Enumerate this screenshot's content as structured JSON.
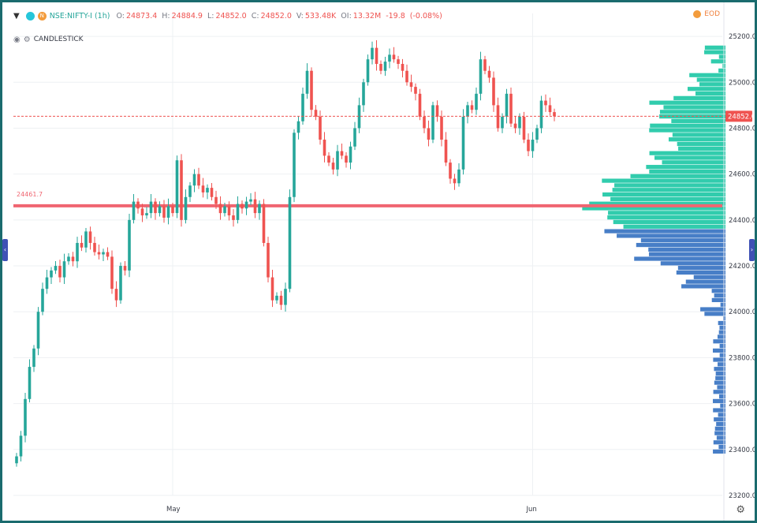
{
  "header": {
    "symbol": "NSE:NIFTY-I (1h)",
    "open_label": "O:",
    "open": "24873.4",
    "high_label": "H:",
    "high": "24884.9",
    "low_label": "L:",
    "low": "24852.0",
    "close_label": "C:",
    "close": "24852.0",
    "volume_label": "V:",
    "volume": "533.48K",
    "oi_label": "OI:",
    "oi": "13.32M",
    "change": "-19.8",
    "change_pct": "(-0.08%)"
  },
  "subheader": {
    "chart_type": "CANDLESTICK"
  },
  "eod_label": "EOD",
  "colors": {
    "up": "#26a69a",
    "down": "#ef5350",
    "profile_upper": "#26c9a9",
    "profile_lower": "#3d77c4",
    "poc": "#f06571",
    "frame": "#1a6b6e"
  },
  "chart_data": {
    "type": "candlestick",
    "ylim": [
      23200,
      25300
    ],
    "yticks": [
      25200,
      25000,
      24800,
      24600,
      24400,
      24200,
      24000,
      23800,
      23600,
      23400,
      23200
    ],
    "ytick_labels": [
      "25200.0",
      "25000.0",
      "24800.0",
      "24600.0",
      "24400.0",
      "24200.0",
      "24000.0",
      "23800.0",
      "23600.0",
      "23400.0",
      "23200.0"
    ],
    "xtick_labels": [
      "May",
      "Jun"
    ],
    "xtick_index": [
      36,
      119
    ],
    "last_price": 24852.0,
    "last_price_label": "24852.0",
    "poc_level": 24461.7,
    "poc_label": "24461.7",
    "closes": [
      23370,
      23460,
      23620,
      23760,
      23840,
      24000,
      24100,
      24150,
      24180,
      24200,
      24150,
      24220,
      24240,
      24220,
      24300,
      24280,
      24350,
      24300,
      24260,
      24250,
      24260,
      24240,
      24100,
      24050,
      24200,
      24180,
      24400,
      24480,
      24450,
      24420,
      24430,
      24480,
      24430,
      24460,
      24410,
      24460,
      24430,
      24660,
      24400,
      24500,
      24550,
      24600,
      24550,
      24520,
      24540,
      24500,
      24470,
      24430,
      24460,
      24420,
      24400,
      24470,
      24450,
      24480,
      24490,
      24430,
      24470,
      24300,
      24150,
      24050,
      24070,
      24030,
      24100,
      24500,
      24780,
      24830,
      24950,
      25050,
      24880,
      24850,
      24750,
      24680,
      24650,
      24620,
      24700,
      24680,
      24650,
      24720,
      24800,
      24900,
      25000,
      25100,
      25150,
      25080,
      25050,
      25090,
      25120,
      25100,
      25080,
      25050,
      25000,
      24980,
      24950,
      24850,
      24800,
      24750,
      24900,
      24850,
      24750,
      24650,
      24580,
      24560,
      24620,
      24850,
      24900,
      24880,
      24950,
      25100,
      25050,
      25020,
      24900,
      24800,
      24850,
      24950,
      24820,
      24800,
      24850,
      24750,
      24700,
      24750,
      24800,
      24920,
      24900,
      24870,
      24852
    ],
    "volume_profile": {
      "bin_size": 20,
      "bins_start": 23380,
      "bins_end": 25160,
      "split_level": 24360,
      "upper_color": "#26c9a9",
      "lower_color": "#3d77c4"
    }
  }
}
